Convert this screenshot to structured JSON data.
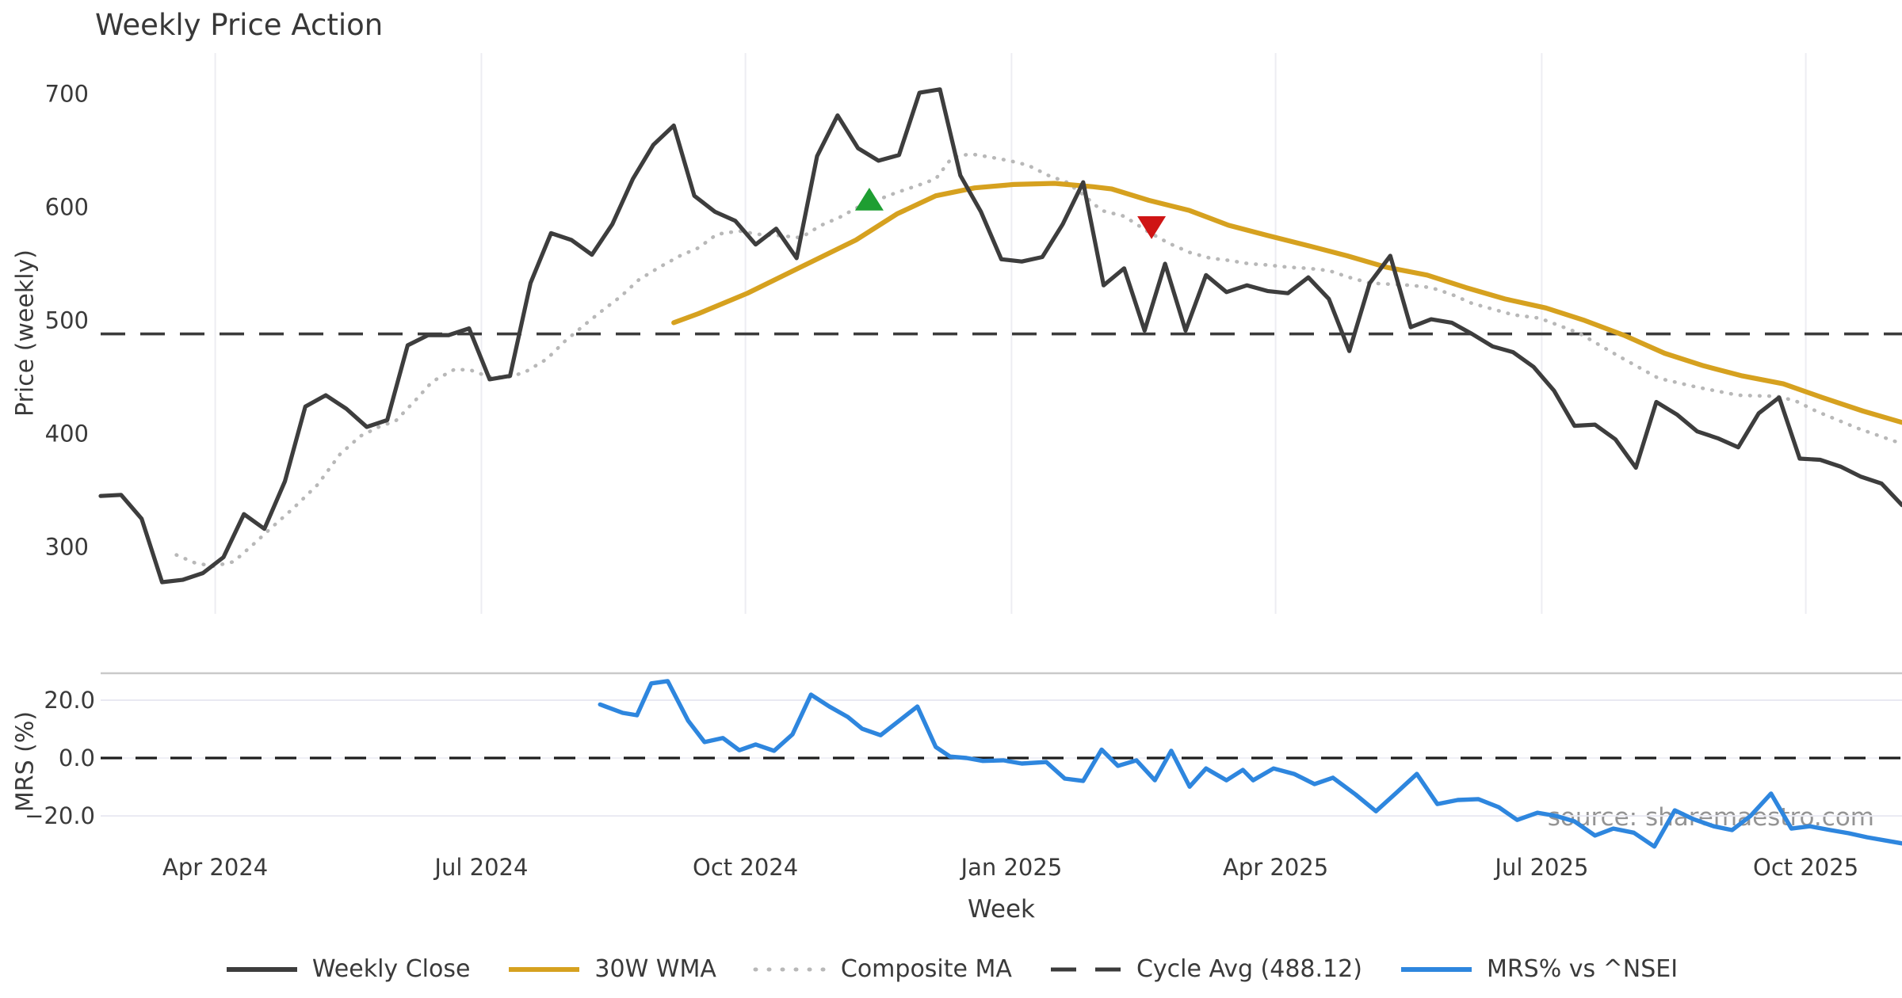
{
  "title": "Weekly Price Action",
  "watermark": "source: sharemaestro.com",
  "colors": {
    "weekly_close": "#3d3d3d",
    "wma_30w": "#d6a11f",
    "composite_ma": "#b8b8b8",
    "cycle_avg": "#3b3b3b",
    "mrs": "#2e86de",
    "buy_marker": "#1e9e32",
    "sell_marker": "#cf1515",
    "gridline": "#ededf2",
    "panel_border": "#c9c9c9",
    "tick_text": "#3a3a3a"
  },
  "legend": [
    {
      "label": "Weekly Close",
      "color": "#3d3d3d",
      "style": "solid"
    },
    {
      "label": "30W WMA",
      "color": "#d6a11f",
      "style": "solid"
    },
    {
      "label": "Composite MA",
      "color": "#b8b8b8",
      "style": "dotted"
    },
    {
      "label": "Cycle Avg (488.12)",
      "color": "#3b3b3b",
      "style": "dashed"
    },
    {
      "label": "MRS% vs ^NSEI",
      "color": "#2e86de",
      "style": "solid"
    }
  ],
  "chart_data": [
    {
      "type": "line",
      "panel": "price",
      "title": "Weekly Price Action",
      "xlabel": "Week",
      "ylabel": "Price (weekly)",
      "ylim": [
        241,
        736
      ],
      "yticks": [
        300,
        400,
        500,
        600,
        700
      ],
      "x_unit": "weeks_from_start",
      "x_range_weeks": [
        0,
        88
      ],
      "x_ticks": [
        {
          "label": "Apr 2024",
          "week": 5.6
        },
        {
          "label": "Jul 2024",
          "week": 18.6
        },
        {
          "label": "Oct 2024",
          "week": 31.5
        },
        {
          "label": "Jan 2025",
          "week": 44.5
        },
        {
          "label": "Apr 2025",
          "week": 57.4
        },
        {
          "label": "Jul 2025",
          "week": 70.4
        },
        {
          "label": "Oct 2025",
          "week": 83.3
        }
      ],
      "cycle_avg": 488.12,
      "series": [
        {
          "name": "Weekly Close",
          "style": "solid",
          "color": "#3d3d3d",
          "week_start": 0,
          "week_step": 1,
          "values": [
            345,
            346,
            325,
            269,
            271,
            277,
            291,
            329,
            316,
            358,
            424,
            434,
            422,
            406,
            412,
            478,
            487,
            487,
            493,
            448,
            451,
            533,
            577,
            571,
            558,
            585,
            625,
            655,
            672,
            610,
            596,
            588,
            567,
            581,
            555,
            645,
            681,
            652,
            641,
            646,
            701,
            704,
            628,
            596,
            554,
            552,
            556,
            585,
            622,
            531,
            546,
            491,
            550,
            491,
            540,
            525,
            531,
            526,
            524,
            538,
            519,
            473,
            533,
            557,
            494,
            501,
            498,
            488,
            477,
            472,
            459,
            438,
            407,
            408,
            395,
            370,
            428,
            417,
            402,
            396,
            388,
            418,
            432,
            378,
            377,
            371,
            362,
            356,
            337
          ]
        },
        {
          "name": "30W WMA",
          "style": "solid",
          "color": "#d6a11f",
          "points": [
            [
              28.0,
              498
            ],
            [
              29.2,
              506
            ],
            [
              31.6,
              524
            ],
            [
              34.3,
              548
            ],
            [
              36.9,
              571
            ],
            [
              38.9,
              594
            ],
            [
              40.8,
              610
            ],
            [
              42.7,
              617
            ],
            [
              44.6,
              620
            ],
            [
              46.6,
              621
            ],
            [
              48.5,
              618
            ],
            [
              49.4,
              616
            ],
            [
              51.2,
              606
            ],
            [
              53.2,
              597
            ],
            [
              55.1,
              584
            ],
            [
              57.0,
              575
            ],
            [
              59.0,
              566
            ],
            [
              60.9,
              557
            ],
            [
              62.8,
              547
            ],
            [
              64.8,
              540
            ],
            [
              66.7,
              529
            ],
            [
              68.6,
              519
            ],
            [
              70.6,
              511
            ],
            [
              72.5,
              500
            ],
            [
              74.4,
              487
            ],
            [
              76.4,
              471
            ],
            [
              78.3,
              460
            ],
            [
              80.2,
              451
            ],
            [
              82.2,
              444
            ],
            [
              84.1,
              432
            ],
            [
              86.1,
              420
            ],
            [
              88.0,
              410
            ]
          ]
        },
        {
          "name": "Composite MA",
          "style": "dotted",
          "color": "#b8b8b8",
          "points": [
            [
              3.7,
              293
            ],
            [
              4.6,
              286
            ],
            [
              5.5,
              283
            ],
            [
              6.5,
              287
            ],
            [
              7.5,
              303
            ],
            [
              8.4,
              318
            ],
            [
              9.4,
              334
            ],
            [
              10.6,
              355
            ],
            [
              11.7,
              382
            ],
            [
              12.7,
              398
            ],
            [
              13.7,
              407
            ],
            [
              14.4,
              411
            ],
            [
              15.4,
              430
            ],
            [
              16.2,
              446
            ],
            [
              17.3,
              457
            ],
            [
              18.1,
              456
            ],
            [
              19.0,
              450
            ],
            [
              19.9,
              450
            ],
            [
              20.7,
              454
            ],
            [
              21.8,
              466
            ],
            [
              22.7,
              482
            ],
            [
              23.7,
              497
            ],
            [
              24.6,
              510
            ],
            [
              25.4,
              521
            ],
            [
              26.3,
              536
            ],
            [
              27.3,
              547
            ],
            [
              28.3,
              557
            ],
            [
              29.2,
              564
            ],
            [
              30.1,
              576
            ],
            [
              31.2,
              579
            ],
            [
              32.1,
              576
            ],
            [
              33.1,
              575
            ],
            [
              34.2,
              573
            ],
            [
              35.2,
              584
            ],
            [
              36.1,
              591
            ],
            [
              37.0,
              600
            ],
            [
              37.9,
              606
            ],
            [
              38.9,
              613
            ],
            [
              39.9,
              619
            ],
            [
              40.8,
              625
            ],
            [
              41.6,
              644
            ],
            [
              42.5,
              647
            ],
            [
              43.5,
              644
            ],
            [
              44.4,
              641
            ],
            [
              45.3,
              637
            ],
            [
              46.3,
              628
            ],
            [
              47.2,
              622
            ],
            [
              48.0,
              611
            ],
            [
              48.9,
              597
            ],
            [
              50.0,
              592
            ],
            [
              51.2,
              578
            ],
            [
              52.2,
              568
            ],
            [
              53.2,
              560
            ],
            [
              54.2,
              555
            ],
            [
              55.1,
              553
            ],
            [
              56.1,
              550
            ],
            [
              57.0,
              549
            ],
            [
              58.0,
              547
            ],
            [
              59.0,
              546
            ],
            [
              60.0,
              544
            ],
            [
              61.0,
              538
            ],
            [
              62.0,
              533
            ],
            [
              63.0,
              532
            ],
            [
              64.0,
              531
            ],
            [
              65.0,
              529
            ],
            [
              66.0,
              523
            ],
            [
              67.0,
              515
            ],
            [
              68.0,
              510
            ],
            [
              69.0,
              505
            ],
            [
              70.3,
              502
            ],
            [
              72.2,
              489
            ],
            [
              74.2,
              468
            ],
            [
              76.1,
              449
            ],
            [
              78.0,
              441
            ],
            [
              80.0,
              434
            ],
            [
              81.9,
              433
            ],
            [
              82.8,
              429
            ],
            [
              83.8,
              420
            ],
            [
              85.8,
              405
            ],
            [
              87.7,
              393
            ],
            [
              88.0,
              392
            ]
          ]
        },
        {
          "name": "Cycle Avg (488.12)",
          "style": "dashed",
          "color": "#3b3b3b",
          "value": 488.12
        }
      ],
      "markers": [
        {
          "name": "buy-signal",
          "shape": "triangle-up",
          "color": "#1e9e32",
          "week": 37.55,
          "value": 606
        },
        {
          "name": "sell-signal",
          "shape": "triangle-down",
          "color": "#cf1515",
          "week": 51.34,
          "value": 583
        }
      ]
    },
    {
      "type": "line",
      "panel": "mrs",
      "ylabel": "MRS (%)",
      "ylim": [
        -32.3,
        29.3
      ],
      "yticks": [
        20,
        0,
        -20
      ],
      "ytick_labels": [
        "20.0",
        "0.0",
        "−20.0"
      ],
      "zero_line": 0,
      "series": [
        {
          "name": "MRS% vs ^NSEI",
          "style": "solid",
          "color": "#2e86de",
          "points": [
            [
              24.4,
              18.5
            ],
            [
              25.5,
              15.6
            ],
            [
              26.2,
              14.8
            ],
            [
              26.9,
              25.8
            ],
            [
              27.7,
              26.6
            ],
            [
              28.7,
              12.9
            ],
            [
              29.5,
              5.5
            ],
            [
              30.4,
              6.9
            ],
            [
              31.2,
              2.7
            ],
            [
              32.0,
              4.7
            ],
            [
              32.9,
              2.5
            ],
            [
              33.8,
              8.2
            ],
            [
              34.7,
              21.9
            ],
            [
              35.6,
              17.8
            ],
            [
              36.5,
              14.2
            ],
            [
              37.2,
              10.1
            ],
            [
              38.1,
              7.9
            ],
            [
              39.1,
              13.4
            ],
            [
              39.9,
              17.8
            ],
            [
              40.8,
              3.8
            ],
            [
              41.5,
              0.5
            ],
            [
              42.3,
              0.0
            ],
            [
              43.1,
              -1.0
            ],
            [
              44.1,
              -0.8
            ],
            [
              45.0,
              -1.9
            ],
            [
              46.2,
              -1.4
            ],
            [
              47.1,
              -7.1
            ],
            [
              48.0,
              -7.9
            ],
            [
              48.9,
              2.9
            ],
            [
              49.7,
              -2.7
            ],
            [
              50.6,
              -0.8
            ],
            [
              51.5,
              -7.7
            ],
            [
              52.3,
              2.5
            ],
            [
              53.2,
              -9.9
            ],
            [
              54.0,
              -3.6
            ],
            [
              55.0,
              -7.7
            ],
            [
              55.8,
              -4.1
            ],
            [
              56.3,
              -7.7
            ],
            [
              57.3,
              -3.6
            ],
            [
              58.3,
              -5.5
            ],
            [
              59.3,
              -9.0
            ],
            [
              60.2,
              -6.8
            ],
            [
              61.3,
              -12.6
            ],
            [
              62.3,
              -18.4
            ],
            [
              63.3,
              -12.0
            ],
            [
              64.3,
              -5.5
            ],
            [
              65.3,
              -15.9
            ],
            [
              66.3,
              -14.5
            ],
            [
              67.3,
              -14.2
            ],
            [
              68.3,
              -17.0
            ],
            [
              69.2,
              -21.4
            ],
            [
              70.2,
              -18.9
            ],
            [
              71.1,
              -20.0
            ],
            [
              72.0,
              -21.9
            ],
            [
              73.0,
              -26.8
            ],
            [
              73.9,
              -24.4
            ],
            [
              74.9,
              -25.8
            ],
            [
              75.9,
              -30.6
            ],
            [
              76.9,
              -18.1
            ],
            [
              77.8,
              -21.1
            ],
            [
              78.8,
              -23.6
            ],
            [
              79.7,
              -24.9
            ],
            [
              80.6,
              -20.0
            ],
            [
              81.6,
              -12.3
            ],
            [
              82.6,
              -24.4
            ],
            [
              83.5,
              -23.6
            ],
            [
              84.5,
              -24.9
            ],
            [
              85.4,
              -26.0
            ],
            [
              86.3,
              -27.4
            ],
            [
              88.0,
              -29.5
            ]
          ]
        }
      ]
    }
  ]
}
